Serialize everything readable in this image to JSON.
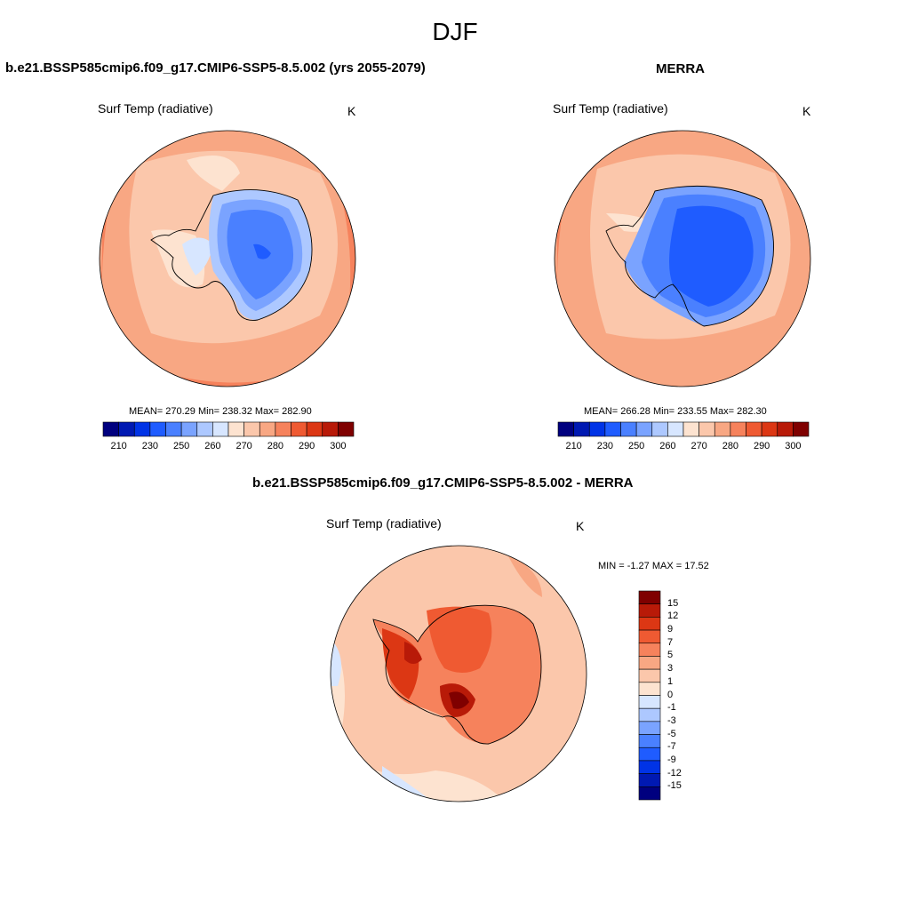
{
  "title": "DJF",
  "panels": {
    "model": {
      "title": "b.e21.BSSP585cmip6.f09_g17.CMIP6-SSP5-8.5.002 (yrs 2055-2079)",
      "variable": "Surf Temp (radiative)",
      "units": "K",
      "stats": "MEAN= 270.29  Min= 238.32  Max= 282.90"
    },
    "obs": {
      "title": "MERRA",
      "variable": "Surf Temp (radiative)",
      "units": "K",
      "stats": "MEAN= 266.28  Min= 233.55  Max= 282.30"
    },
    "diff": {
      "title": "b.e21.BSSP585cmip6.f09_g17.CMIP6-SSP5-8.5.002 - MERRA",
      "variable": "Surf Temp (radiative)",
      "units": "K",
      "stats": "MIN =  -1.27 MAX =  17.52"
    }
  },
  "abs_colorbar": {
    "colors": [
      "#00007f",
      "#0019b2",
      "#0033e6",
      "#1f5cff",
      "#4a80ff",
      "#7aa3ff",
      "#adc8ff",
      "#d7e6ff",
      "#fde3d0",
      "#fbc7ab",
      "#f8a783",
      "#f6825c",
      "#ef5a32",
      "#dc3714",
      "#b81a08",
      "#7f0000"
    ],
    "labels": [
      "210",
      "230",
      "250",
      "260",
      "270",
      "280",
      "290",
      "300"
    ]
  },
  "diff_colorbar": {
    "colors": [
      "#7f0000",
      "#b81a08",
      "#dc3714",
      "#ef5a32",
      "#f6825c",
      "#f8a783",
      "#fbc7ab",
      "#fde3d0",
      "#d7e6ff",
      "#adc8ff",
      "#7aa3ff",
      "#4a80ff",
      "#1f5cff",
      "#0033e6",
      "#0019b2",
      "#00007f"
    ],
    "labels": [
      "15",
      "12",
      "9",
      "7",
      "5",
      "3",
      "1",
      "0",
      "-1",
      "-3",
      "-5",
      "-7",
      "-9",
      "-12",
      "-15"
    ]
  }
}
